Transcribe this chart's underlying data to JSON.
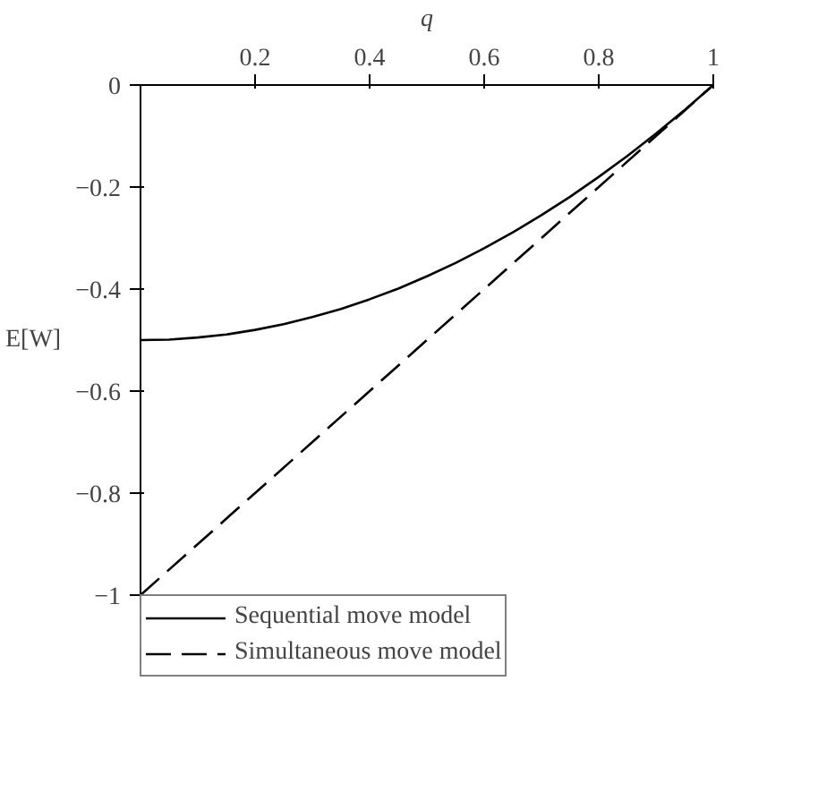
{
  "chart_data": {
    "type": "line",
    "xlabel": "q",
    "ylabel": "E[W]",
    "x": [
      0,
      0.1,
      0.2,
      0.3,
      0.4,
      0.5,
      0.6,
      0.7,
      0.8,
      0.9,
      1
    ],
    "series": [
      {
        "name": "Sequential move model",
        "color": "#000000",
        "line_style": "solid",
        "x": [
          0,
          0.05,
          0.1,
          0.15,
          0.2,
          0.25,
          0.3,
          0.35,
          0.4,
          0.45,
          0.5,
          0.55,
          0.6,
          0.65,
          0.7,
          0.75,
          0.8,
          0.85,
          0.9,
          0.95,
          1
        ],
        "values": [
          -0.5,
          -0.499,
          -0.495,
          -0.489,
          -0.48,
          -0.469,
          -0.455,
          -0.439,
          -0.42,
          -0.399,
          -0.375,
          -0.349,
          -0.32,
          -0.289,
          -0.255,
          -0.219,
          -0.18,
          -0.139,
          -0.095,
          -0.049,
          0
        ]
      },
      {
        "name": "Simultaneous move model",
        "color": "#000000",
        "line_style": "dashed",
        "values": [
          -1,
          -0.9,
          -0.8,
          -0.7,
          -0.6,
          -0.5,
          -0.4,
          -0.3,
          -0.2,
          -0.1,
          0
        ]
      }
    ],
    "xlim": [
      0,
      1
    ],
    "ylim": [
      -1,
      0
    ],
    "xticks": [
      0.2,
      0.4,
      0.6,
      0.8,
      1
    ],
    "yticks": [
      0,
      -0.2,
      -0.4,
      -0.6,
      -0.8,
      -1
    ],
    "grid": false,
    "legend": "bottom left",
    "marker": "none"
  }
}
